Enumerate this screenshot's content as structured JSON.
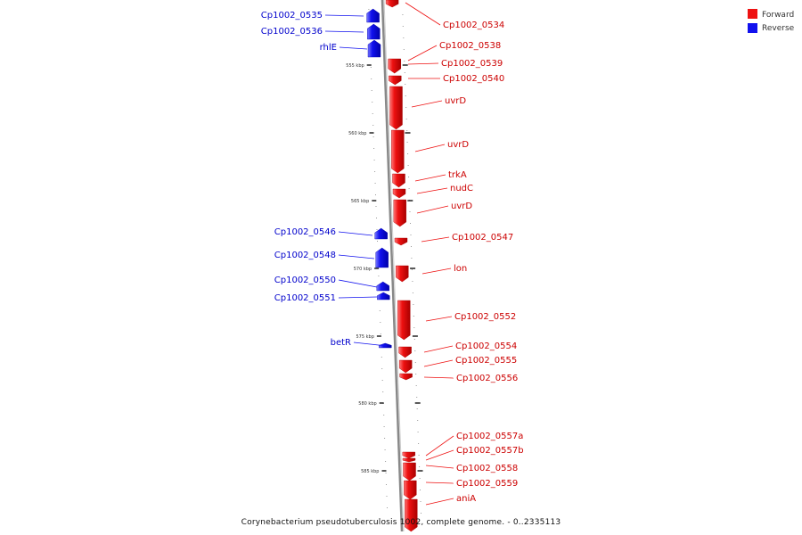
{
  "caption": "Corynebacterium pseudotuberculosis 1002, complete genome. - 0..2335113",
  "legend": [
    {
      "label": "Forward",
      "color": "#ee1111"
    },
    {
      "label": "Reverse",
      "color": "#1111ee"
    }
  ],
  "colors": {
    "forward": "#ee1111",
    "reverse": "#1111ee",
    "axis": "#888888"
  },
  "ticks": [
    "555 kbp",
    "560 kbp",
    "565 kbp",
    "570 kbp",
    "575 kbp",
    "580 kbp",
    "585 kbp"
  ],
  "genes": [
    {
      "name": "Cp1002_0534",
      "strand": "forward"
    },
    {
      "name": "Cp1002_0535",
      "strand": "reverse"
    },
    {
      "name": "Cp1002_0536",
      "strand": "reverse"
    },
    {
      "name": "rhlE",
      "strand": "reverse"
    },
    {
      "name": "Cp1002_0538",
      "strand": "forward"
    },
    {
      "name": "Cp1002_0539",
      "strand": "forward"
    },
    {
      "name": "Cp1002_0540",
      "strand": "forward"
    },
    {
      "name": "uvrD",
      "strand": "forward"
    },
    {
      "name": "uvrD",
      "strand": "forward"
    },
    {
      "name": "trkA",
      "strand": "forward"
    },
    {
      "name": "nudC",
      "strand": "forward"
    },
    {
      "name": "uvrD",
      "strand": "forward"
    },
    {
      "name": "Cp1002_0546",
      "strand": "reverse"
    },
    {
      "name": "Cp1002_0547",
      "strand": "forward"
    },
    {
      "name": "Cp1002_0548",
      "strand": "reverse"
    },
    {
      "name": "lon",
      "strand": "forward"
    },
    {
      "name": "Cp1002_0550",
      "strand": "reverse"
    },
    {
      "name": "Cp1002_0551",
      "strand": "reverse"
    },
    {
      "name": "Cp1002_0552",
      "strand": "forward"
    },
    {
      "name": "betR",
      "strand": "reverse"
    },
    {
      "name": "Cp1002_0554",
      "strand": "forward"
    },
    {
      "name": "Cp1002_0555",
      "strand": "forward"
    },
    {
      "name": "Cp1002_0556",
      "strand": "forward"
    },
    {
      "name": "Cp1002_0557a",
      "strand": "forward"
    },
    {
      "name": "Cp1002_0557b",
      "strand": "forward"
    },
    {
      "name": "Cp1002_0558",
      "strand": "forward"
    },
    {
      "name": "Cp1002_0559",
      "strand": "forward"
    },
    {
      "name": "aniA",
      "strand": "forward"
    }
  ]
}
